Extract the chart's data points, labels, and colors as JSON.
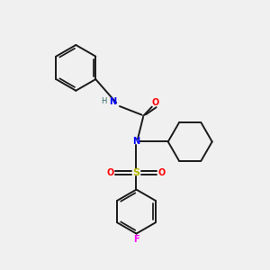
{
  "background_color": "#f0f0f0",
  "bond_color": "#1a1a1a",
  "N_color": "#0000ff",
  "O_color": "#ff0000",
  "S_color": "#b8b800",
  "F_color": "#ff00ff",
  "H_color": "#336666",
  "figsize": [
    3.0,
    3.0
  ],
  "dpi": 100,
  "xlim": [
    0,
    10
  ],
  "ylim": [
    0,
    10
  ]
}
